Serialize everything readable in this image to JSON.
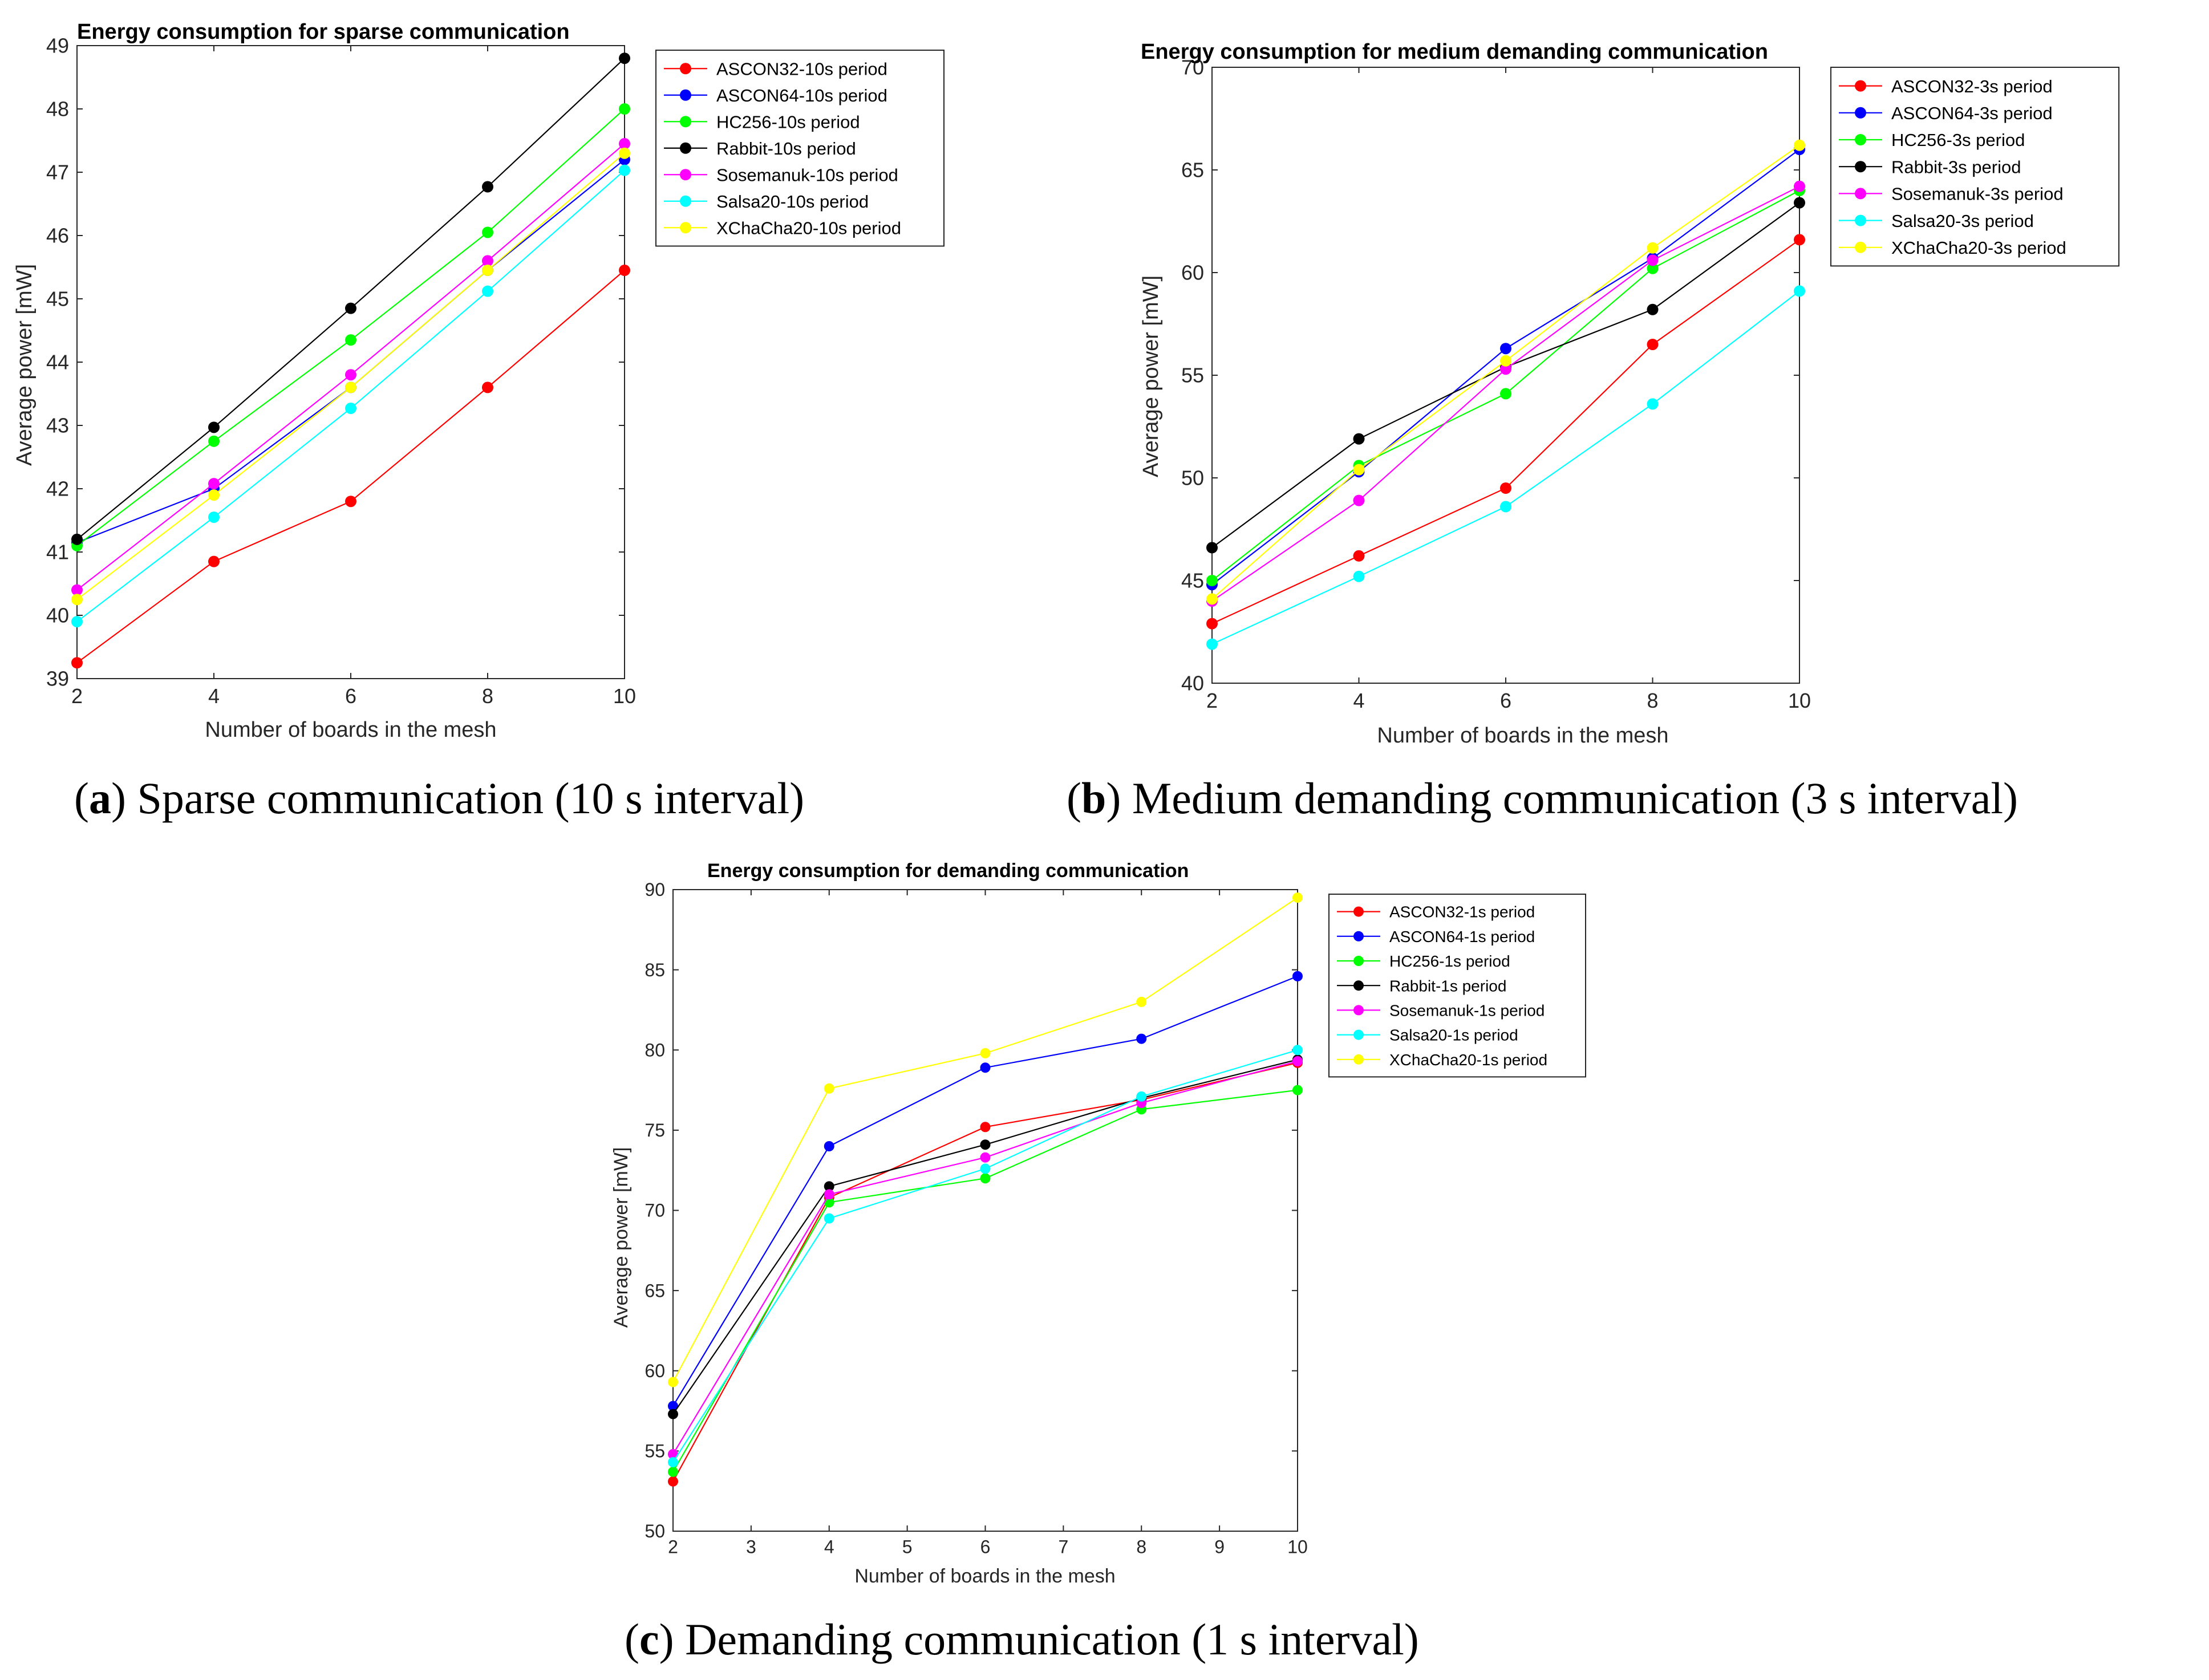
{
  "chart_data": [
    {
      "id": "a",
      "type": "line",
      "title": "Energy consumption for sparse communication",
      "xlabel": "Number of boards in the mesh",
      "ylabel": "Average power [mW]",
      "x": [
        2,
        4,
        6,
        8,
        10
      ],
      "xticks": [
        "2",
        "4",
        "6",
        "8",
        "10"
      ],
      "yticks": [
        "39",
        "40",
        "41",
        "42",
        "43",
        "44",
        "45",
        "46",
        "47",
        "48",
        "49"
      ],
      "xlim": [
        2,
        10
      ],
      "ylim": [
        39,
        49
      ],
      "legend_position": "outside-top-right",
      "series": [
        {
          "name": "ASCON32-10s period",
          "color": "#ff0000",
          "values": [
            39.25,
            40.85,
            41.8,
            43.6,
            45.45
          ]
        },
        {
          "name": "ASCON64-10s period",
          "color": "#0000ff",
          "values": [
            41.15,
            42.0,
            43.6,
            45.45,
            47.2
          ]
        },
        {
          "name": "HC256-10s period",
          "color": "#00ff00",
          "values": [
            41.1,
            42.75,
            44.35,
            46.05,
            48.0
          ]
        },
        {
          "name": "Rabbit-10s period",
          "color": "#000000",
          "values": [
            41.2,
            42.97,
            44.85,
            46.77,
            48.8
          ]
        },
        {
          "name": "Sosemanuk-10s period",
          "color": "#ff00ff",
          "values": [
            40.4,
            42.08,
            43.8,
            45.6,
            47.45
          ]
        },
        {
          "name": "Salsa20-10s period",
          "color": "#00ffff",
          "values": [
            39.9,
            41.55,
            43.27,
            45.12,
            47.03
          ]
        },
        {
          "name": "XChaCha20-10s period",
          "color": "#ffff00",
          "values": [
            40.25,
            41.9,
            43.6,
            45.45,
            47.3
          ]
        }
      ],
      "caption_label": "a",
      "caption_text": ") Sparse communication (10 s interval)"
    },
    {
      "id": "b",
      "type": "line",
      "title": "Energy consumption for medium demanding communication",
      "xlabel": "Number of boards in the mesh",
      "ylabel": "Average power [mW]",
      "x": [
        2,
        4,
        6,
        8,
        10
      ],
      "xticks": [
        "2",
        "4",
        "6",
        "8",
        "10"
      ],
      "yticks": [
        "40",
        "45",
        "50",
        "55",
        "60",
        "65",
        "70"
      ],
      "xlim": [
        2,
        10
      ],
      "ylim": [
        40,
        70
      ],
      "legend_position": "outside-top-right",
      "series": [
        {
          "name": "ASCON32-3s period",
          "color": "#ff0000",
          "values": [
            42.9,
            46.2,
            49.5,
            56.5,
            61.6
          ]
        },
        {
          "name": "ASCON64-3s period",
          "color": "#0000ff",
          "values": [
            44.8,
            50.3,
            56.3,
            60.7,
            66.0
          ]
        },
        {
          "name": "HC256-3s period",
          "color": "#00ff00",
          "values": [
            45.0,
            50.6,
            54.1,
            60.2,
            64.0
          ]
        },
        {
          "name": "Rabbit-3s period",
          "color": "#000000",
          "values": [
            46.6,
            51.9,
            55.4,
            58.2,
            63.4
          ]
        },
        {
          "name": "Sosemanuk-3s period",
          "color": "#ff00ff",
          "values": [
            44.0,
            48.9,
            55.3,
            60.6,
            64.2
          ]
        },
        {
          "name": "Salsa20-3s period",
          "color": "#00ffff",
          "values": [
            41.9,
            45.2,
            48.6,
            53.6,
            59.1
          ]
        },
        {
          "name": "XChaCha20-3s period",
          "color": "#ffff00",
          "values": [
            44.1,
            50.4,
            55.7,
            61.2,
            66.2
          ]
        }
      ],
      "caption_label": "b",
      "caption_text": ") Medium demanding communication (3 s interval)"
    },
    {
      "id": "c",
      "type": "line",
      "title": "Energy consumption for demanding communication",
      "xlabel": "Number of boards in the mesh",
      "ylabel": "Average power [mW]",
      "x": [
        2,
        4,
        6,
        8,
        10
      ],
      "xticks": [
        "2",
        "3",
        "4",
        "5",
        "6",
        "7",
        "8",
        "9",
        "10"
      ],
      "yticks": [
        "50",
        "55",
        "60",
        "65",
        "70",
        "75",
        "80",
        "85",
        "90"
      ],
      "xlim": [
        2,
        10
      ],
      "ylim": [
        50,
        90
      ],
      "legend_position": "inside-top-right",
      "series": [
        {
          "name": "ASCON32-1s period",
          "color": "#ff0000",
          "values": [
            53.1,
            70.8,
            75.2,
            76.9,
            79.2
          ]
        },
        {
          "name": "ASCON64-1s period",
          "color": "#0000ff",
          "values": [
            57.8,
            74.0,
            78.9,
            80.7,
            84.6
          ]
        },
        {
          "name": "HC256-1s period",
          "color": "#00ff00",
          "values": [
            53.7,
            70.5,
            72.0,
            76.3,
            77.5
          ]
        },
        {
          "name": "Rabbit-1s period",
          "color": "#000000",
          "values": [
            57.3,
            71.5,
            74.1,
            77.0,
            79.4
          ]
        },
        {
          "name": "Sosemanuk-1s period",
          "color": "#ff00ff",
          "values": [
            54.8,
            71.0,
            73.3,
            76.7,
            79.3
          ]
        },
        {
          "name": "Salsa20-1s period",
          "color": "#00ffff",
          "values": [
            54.3,
            69.5,
            72.6,
            77.1,
            80.0
          ]
        },
        {
          "name": "XChaCha20-1s period",
          "color": "#ffff00",
          "values": [
            59.3,
            77.6,
            79.8,
            83.0,
            89.5
          ]
        }
      ],
      "caption_label": "c",
      "caption_text": ") Demanding communication (1 s interval)"
    }
  ]
}
